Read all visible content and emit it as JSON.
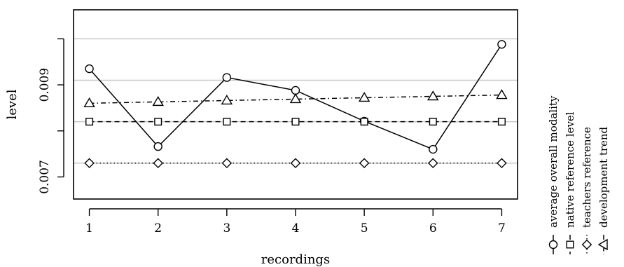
{
  "chart_data": {
    "type": "line",
    "xlabel": "recordings",
    "ylabel": "level",
    "x": [
      1,
      2,
      3,
      4,
      5,
      6,
      7
    ],
    "xlim": [
      0.77,
      7.23
    ],
    "ylim": [
      0.00652,
      0.01063
    ],
    "xticks": [
      "1",
      "2",
      "3",
      "4",
      "5",
      "6",
      "7"
    ],
    "yticks": [
      {
        "value": 0.007,
        "label": "0.007"
      },
      {
        "value": 0.009,
        "label": "0.009"
      }
    ],
    "yticks_unlabeled": [
      0.008,
      0.01
    ],
    "gridlines_y": [
      0.0073,
      0.0082,
      0.0091,
      0.01
    ],
    "legend_position": "right, rotated vertical",
    "series": [
      {
        "name": "average overall modality",
        "marker": "circle",
        "linestyle": "solid",
        "values": [
          0.00935,
          0.00766,
          0.00916,
          0.00888,
          0.00821,
          0.0076,
          0.00988
        ]
      },
      {
        "name": "native reference level",
        "marker": "square",
        "linestyle": "dashed",
        "values": [
          0.0082,
          0.0082,
          0.0082,
          0.0082,
          0.0082,
          0.0082,
          0.0082
        ]
      },
      {
        "name": "teachers reference",
        "marker": "diamond",
        "linestyle": "dotted",
        "values": [
          0.0073,
          0.0073,
          0.0073,
          0.0073,
          0.0073,
          0.0073,
          0.0073
        ]
      },
      {
        "name": "development trend",
        "marker": "triangle",
        "linestyle": "dashdot",
        "values": [
          0.0086,
          0.00863,
          0.00866,
          0.00869,
          0.00872,
          0.00875,
          0.00878
        ]
      }
    ]
  }
}
